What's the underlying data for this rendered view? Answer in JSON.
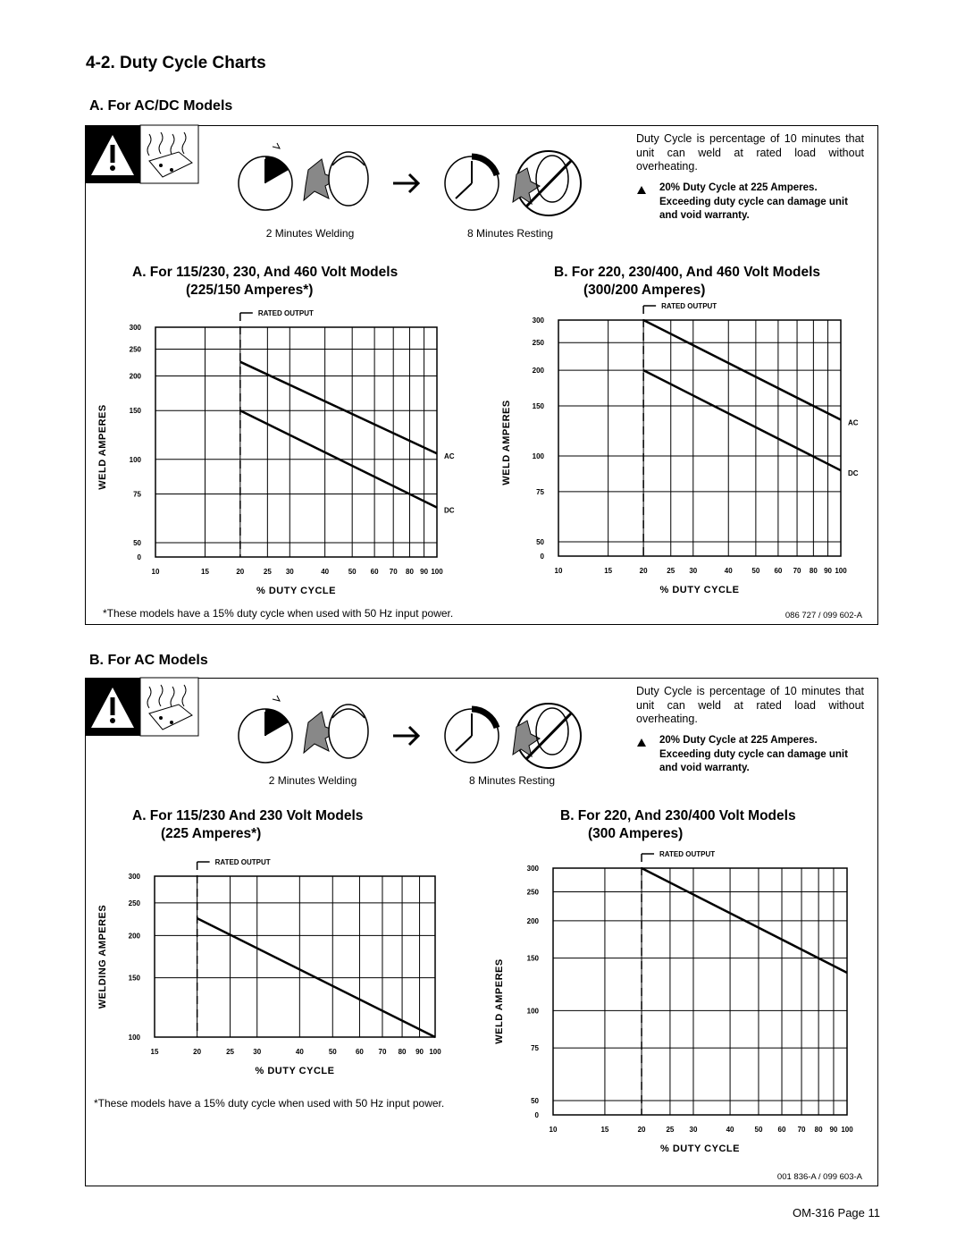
{
  "title": "4-2. Duty Cycle Charts",
  "sections": [
    {
      "heading": "A. For AC/DC Models",
      "caption_left": "2 Minutes Welding",
      "caption_right": "8 Minutes Resting",
      "note": "Duty Cycle is percentage of 10 minutes that unit can weld at rated load without overheating.",
      "warning": "20% Duty Cycle at 225 Amperes. Exceeding duty cycle can damage unit and void warranty.",
      "footnote": "*These models have a 15% duty cycle when used with 50 Hz input power.",
      "ref": "086 727 / 099 602-A"
    },
    {
      "heading": "B. For AC Models",
      "caption_left": "2 Minutes Welding",
      "caption_right": "8 Minutes Resting",
      "note": "Duty Cycle is percentage of 10 minutes that unit can weld at rated load without overheating.",
      "warning": "20% Duty Cycle at 225 Amperes. Exceeding duty cycle can damage unit and void warranty.",
      "footnote": "*These models have a 15% duty cycle when used with 50 Hz input power.",
      "ref": "001 836-A / 099 603-A"
    }
  ],
  "chart_data": [
    {
      "type": "line",
      "title": "A. For 115/230, 230, And 460 Volt Models",
      "subtitle": "(225/150 Amperes*)",
      "xlabel": "% DUTY CYCLE",
      "ylabel": "WELD AMPERES",
      "x": [
        20,
        100
      ],
      "series": [
        {
          "name": "AC",
          "color": "#000000",
          "values": [
            225,
            105
          ]
        },
        {
          "name": "DC",
          "color": "#000000",
          "values": [
            150,
            67
          ]
        }
      ],
      "xlim": [
        10,
        100
      ],
      "xticks": [
        10,
        15,
        20,
        25,
        30,
        40,
        50,
        60,
        70,
        80,
        90,
        100
      ],
      "ylim": [
        0,
        300
      ],
      "yticks": [
        0,
        50,
        75,
        100,
        150,
        200,
        250,
        300
      ],
      "xscale": "log",
      "yscale": "log",
      "grid": true,
      "rated_output": {
        "label": "RATED OUTPUT",
        "x": 20
      }
    },
    {
      "type": "line",
      "title": "B. For 220, 230/400, And 460 Volt Models",
      "subtitle": "(300/200 Amperes)",
      "xlabel": "% DUTY CYCLE",
      "ylabel": "WELD AMPERES",
      "x": [
        20,
        100
      ],
      "series": [
        {
          "name": "AC",
          "color": "#000000",
          "values": [
            300,
            134
          ]
        },
        {
          "name": "DC",
          "color": "#000000",
          "values": [
            200,
            89
          ]
        }
      ],
      "xlim": [
        10,
        100
      ],
      "xticks": [
        10,
        15,
        20,
        25,
        30,
        40,
        50,
        60,
        70,
        80,
        90,
        100
      ],
      "ylim": [
        0,
        300
      ],
      "yticks": [
        0,
        50,
        75,
        100,
        150,
        200,
        250,
        300
      ],
      "xscale": "log",
      "yscale": "log",
      "grid": true,
      "rated_output": {
        "label": "RATED OUTPUT",
        "x": 20
      }
    },
    {
      "type": "line",
      "title": "A. For 115/230 And 230 Volt Models",
      "subtitle": "(225 Amperes*)",
      "xlabel": "% DUTY CYCLE",
      "ylabel": "WELDING AMPERES",
      "x": [
        20,
        100
      ],
      "series": [
        {
          "color": "#000000",
          "values": [
            225,
            100
          ]
        }
      ],
      "xlim": [
        15,
        100
      ],
      "xticks": [
        15,
        20,
        25,
        30,
        40,
        50,
        60,
        70,
        80,
        90,
        100
      ],
      "ylim": [
        100,
        300
      ],
      "yticks": [
        100,
        150,
        200,
        250,
        300
      ],
      "xscale": "log",
      "yscale": "log",
      "grid": true,
      "rated_output": {
        "label": "RATED OUTPUT",
        "x": 20
      }
    },
    {
      "type": "line",
      "title": "B. For 220, And 230/400 Volt Models",
      "subtitle": "(300 Amperes)",
      "xlabel": "% DUTY CYCLE",
      "ylabel": "WELD AMPERES",
      "x": [
        20,
        100
      ],
      "series": [
        {
          "color": "#000000",
          "values": [
            300,
            134
          ]
        }
      ],
      "xlim": [
        10,
        100
      ],
      "xticks": [
        10,
        15,
        20,
        25,
        30,
        40,
        50,
        60,
        70,
        80,
        90,
        100
      ],
      "ylim": [
        0,
        300
      ],
      "yticks": [
        0,
        50,
        75,
        100,
        150,
        200,
        250,
        300
      ],
      "xscale": "log",
      "yscale": "log",
      "grid": true,
      "rated_output": {
        "label": "RATED OUTPUT",
        "x": 20
      }
    }
  ],
  "page_number": "OM-316 Page 11"
}
